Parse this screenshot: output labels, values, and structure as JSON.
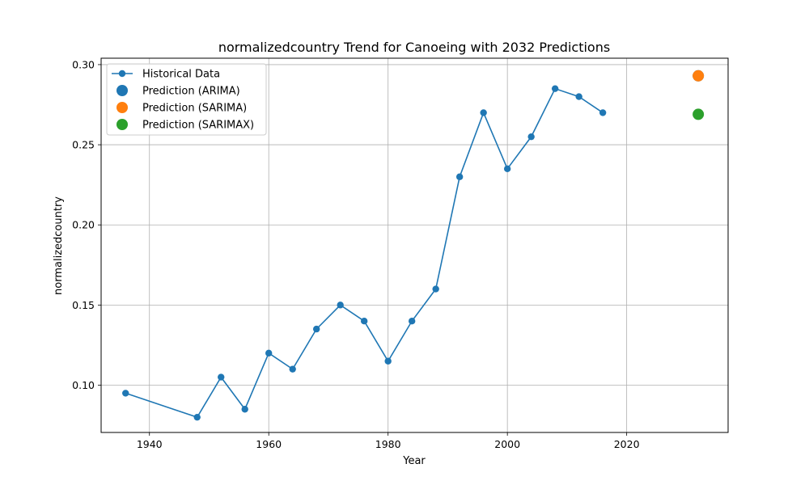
{
  "chart_data": {
    "type": "line",
    "title": "normalizedcountry Trend for Canoeing with 2032 Predictions",
    "xlabel": "Year",
    "ylabel": "normalizedcountry",
    "xlim": [
      1931.9,
      2037
    ],
    "ylim": [
      0.0705,
      0.304
    ],
    "x_ticks": [
      1940,
      1960,
      1980,
      2000,
      2020
    ],
    "y_ticks": [
      0.1,
      0.15,
      0.2,
      0.25,
      0.3
    ],
    "x_tick_labels": [
      "1940",
      "1960",
      "1980",
      "2000",
      "2020"
    ],
    "y_tick_labels": [
      "0.10",
      "0.15",
      "0.20",
      "0.25",
      "0.30"
    ],
    "grid": true,
    "legend_position": "top-left",
    "series": [
      {
        "name": "Historical Data",
        "kind": "line-marker",
        "color": "#1f77b4",
        "x": [
          1936,
          1948,
          1952,
          1956,
          1960,
          1964,
          1968,
          1972,
          1976,
          1980,
          1984,
          1988,
          1992,
          1996,
          2000,
          2004,
          2008,
          2012,
          2016
        ],
        "y": [
          0.095,
          0.08,
          0.105,
          0.085,
          0.12,
          0.11,
          0.135,
          0.15,
          0.14,
          0.115,
          0.14,
          0.16,
          0.23,
          0.27,
          0.235,
          0.255,
          0.285,
          0.28,
          0.27
        ]
      },
      {
        "name": "Prediction (ARIMA)",
        "kind": "scatter",
        "color": "#1f77b4",
        "x": [
          2032
        ],
        "y": [
          0.293
        ]
      },
      {
        "name": "Prediction (SARIMA)",
        "kind": "scatter",
        "color": "#ff7f0e",
        "x": [
          2032
        ],
        "y": [
          0.293
        ]
      },
      {
        "name": "Prediction (SARIMAX)",
        "kind": "scatter",
        "color": "#2ca02c",
        "x": [
          2032
        ],
        "y": [
          0.269
        ]
      }
    ]
  }
}
